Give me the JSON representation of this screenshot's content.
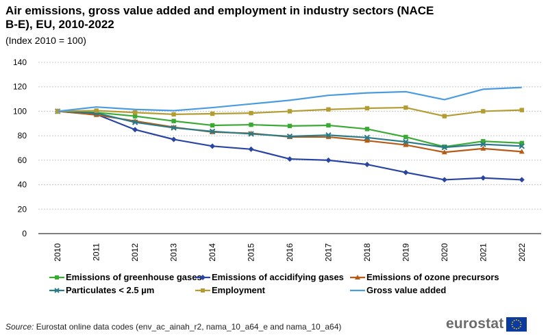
{
  "chart_data": {
    "type": "line",
    "title": "Air emissions, gross value added and employment in industry sectors (NACE B-E), EU, 2010-2022",
    "subtitle": "(Index 2010 = 100)",
    "xlabel": "",
    "ylabel": "",
    "ylim": [
      0,
      140
    ],
    "yticks": [
      "0",
      "20",
      "40",
      "60",
      "80",
      "100",
      "120",
      "140"
    ],
    "categories": [
      "2010",
      "2011",
      "2012",
      "2013",
      "2014",
      "2015",
      "2016",
      "2017",
      "2018",
      "2019",
      "2020",
      "2021",
      "2022"
    ],
    "grid": true,
    "legend_position": "bottom",
    "series": [
      {
        "name": "Emissions of greenhouse gases",
        "color": "#3aaa35",
        "marker": "square",
        "values": [
          100,
          99,
          96,
          92,
          88.5,
          89,
          88,
          88.5,
          85.5,
          79,
          71,
          75.5,
          74
        ]
      },
      {
        "name": "Emissions of accidifying gases",
        "color": "#2a44a4",
        "marker": "diamond",
        "values": [
          100,
          97.5,
          85,
          77,
          71.5,
          69,
          61,
          60,
          56.5,
          50,
          44,
          45.5,
          44
        ]
      },
      {
        "name": "Emissions of ozone precursors",
        "color": "#b65b16",
        "marker": "triangle",
        "values": [
          100,
          97,
          92,
          87,
          83,
          82,
          79,
          79,
          76,
          72.5,
          66.5,
          69.5,
          67
        ]
      },
      {
        "name": "Particulates < 2.5 µm",
        "color": "#2c7a88",
        "marker": "cross",
        "values": [
          100,
          98.5,
          91,
          86.5,
          83.5,
          81.5,
          79.5,
          80.5,
          78.5,
          75,
          70.5,
          73,
          71.5
        ]
      },
      {
        "name": "Employment",
        "color": "#b39d33",
        "marker": "square",
        "values": [
          100,
          100.5,
          99,
          97.5,
          98,
          98.5,
          100,
          101.5,
          102.5,
          103,
          96,
          100,
          101
        ]
      },
      {
        "name": "Gross value added",
        "color": "#4a9be0",
        "marker": "none",
        "values": [
          100,
          103.5,
          101.5,
          100.5,
          103,
          106,
          109,
          113,
          115,
          116,
          109.5,
          118,
          119.5
        ]
      }
    ]
  },
  "source": {
    "label": "Source:",
    "text": "Eurostat online data codes (env_ac_ainah_r2,  nama_10_a64_e and nama_10_a64)"
  },
  "brand": {
    "name": "eurostat"
  }
}
